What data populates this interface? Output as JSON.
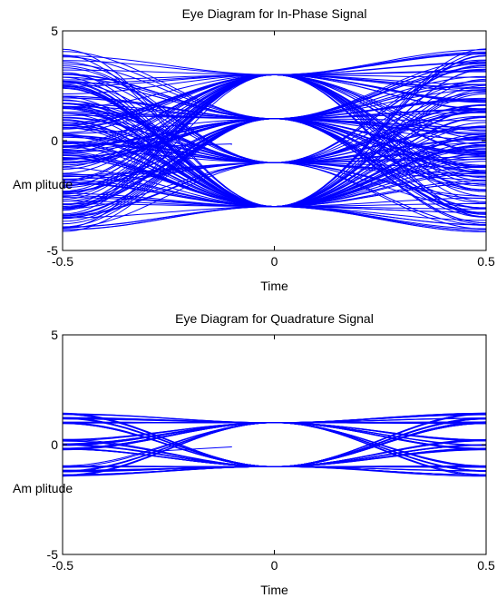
{
  "colors": {
    "trace": "#0000ff",
    "axes": "#000000",
    "background": "#ffffff"
  },
  "chart_data": [
    {
      "type": "line",
      "title": "Eye Diagram for In-Phase Signal",
      "xlabel": "Time",
      "ylabel": "Am plitude",
      "xlim": [
        -0.5,
        0.5
      ],
      "ylim": [
        -5,
        5
      ],
      "xticks": [
        "-0.5",
        "0",
        "0.5"
      ],
      "yticks": [
        "5",
        "0",
        "-5"
      ],
      "crossing_levels": [
        3,
        1,
        -1,
        -3
      ],
      "edge_range": [
        -4.2,
        4.2
      ],
      "series_shape": "eye-diagram traces, symbol levels converge at time 0"
    },
    {
      "type": "line",
      "title": "Eye Diagram for Quadrature Signal",
      "xlabel": "Time",
      "ylabel": "Am plitude",
      "xlim": [
        -0.5,
        0.5
      ],
      "ylim": [
        -5,
        5
      ],
      "xticks": [
        "-0.5",
        "0",
        "0.5"
      ],
      "yticks": [
        "5",
        "0",
        "-5"
      ],
      "crossing_levels": [
        1,
        -1
      ],
      "edge_levels": [
        1.4,
        1.2,
        1.0,
        0.2,
        0.0,
        -0.2,
        -1.0,
        -1.2,
        -1.4
      ],
      "series_shape": "eye-diagram traces, symbol levels converge at time 0"
    }
  ]
}
